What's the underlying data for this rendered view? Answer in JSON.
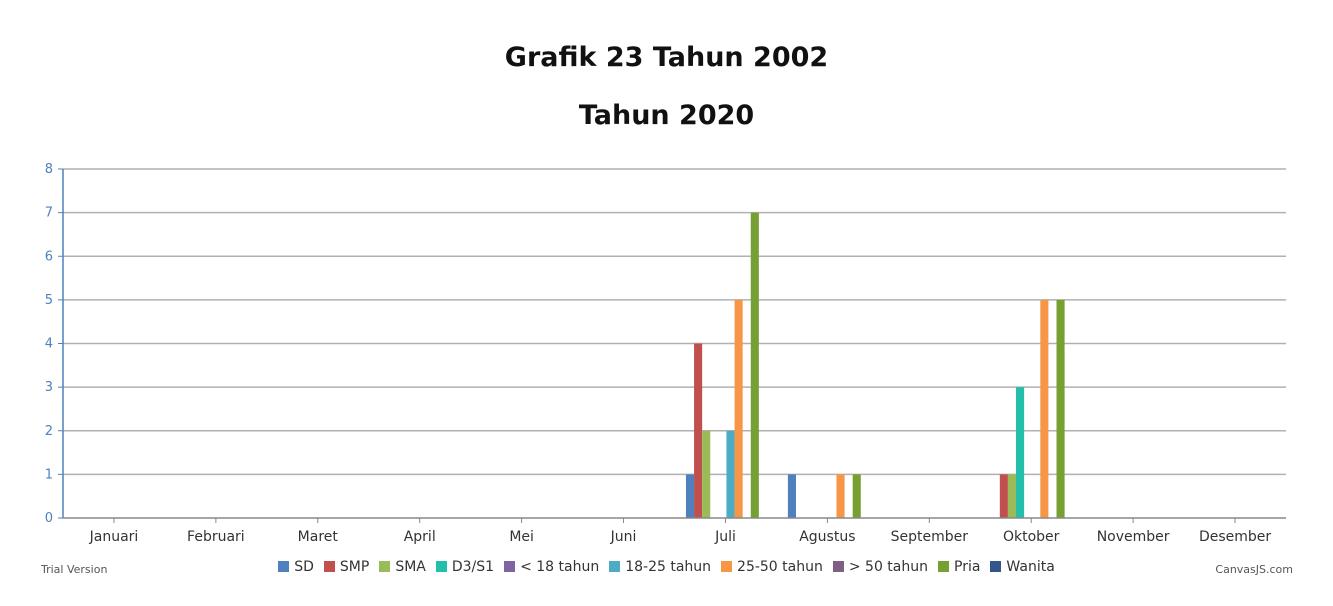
{
  "chart_data": {
    "type": "bar",
    "title": "Grafik 23 Tahun 2002",
    "subtitle": "Tahun 2020",
    "xlabel": "",
    "ylabel": "",
    "ylim": [
      0,
      8
    ],
    "yticks": [
      0,
      1,
      2,
      3,
      4,
      5,
      6,
      7,
      8
    ],
    "grid": true,
    "legend_position": "bottom",
    "categories": [
      "Januari",
      "Februari",
      "Maret",
      "April",
      "Mei",
      "Juni",
      "Juli",
      "Agustus",
      "September",
      "Oktober",
      "November",
      "Desember"
    ],
    "series": [
      {
        "name": "SD",
        "color": "#4f81bc",
        "values": [
          0,
          0,
          0,
          0,
          0,
          0,
          1,
          1,
          0,
          0,
          0,
          0
        ]
      },
      {
        "name": "SMP",
        "color": "#c0504e",
        "values": [
          0,
          0,
          0,
          0,
          0,
          0,
          4,
          0,
          0,
          1,
          0,
          0
        ]
      },
      {
        "name": "SMA",
        "color": "#9bbb58",
        "values": [
          0,
          0,
          0,
          0,
          0,
          0,
          2,
          0,
          0,
          1,
          0,
          0
        ]
      },
      {
        "name": "D3/S1",
        "color": "#23bfaa",
        "values": [
          0,
          0,
          0,
          0,
          0,
          0,
          0,
          0,
          0,
          3,
          0,
          0
        ]
      },
      {
        "name": "< 18 tahun",
        "color": "#8064a1",
        "values": [
          0,
          0,
          0,
          0,
          0,
          0,
          0,
          0,
          0,
          0,
          0,
          0
        ]
      },
      {
        "name": "18-25 tahun",
        "color": "#4aacc5",
        "values": [
          0,
          0,
          0,
          0,
          0,
          0,
          2,
          0,
          0,
          0,
          0,
          0
        ]
      },
      {
        "name": "25-50 tahun",
        "color": "#f79647",
        "values": [
          0,
          0,
          0,
          0,
          0,
          0,
          5,
          1,
          0,
          5,
          0,
          0
        ]
      },
      {
        "name": "> 50 tahun",
        "color": "#7f6084",
        "values": [
          0,
          0,
          0,
          0,
          0,
          0,
          0,
          0,
          0,
          0,
          0,
          0
        ]
      },
      {
        "name": "Pria",
        "color": "#77a033",
        "values": [
          0,
          0,
          0,
          0,
          0,
          0,
          7,
          1,
          0,
          5,
          0,
          0
        ]
      },
      {
        "name": "Wanita",
        "color": "#33558b",
        "values": [
          0,
          0,
          0,
          0,
          0,
          0,
          0,
          0,
          0,
          0,
          0,
          0
        ]
      }
    ]
  },
  "footer": {
    "trial": "Trial Version",
    "credit": "CanvasJS.com"
  }
}
